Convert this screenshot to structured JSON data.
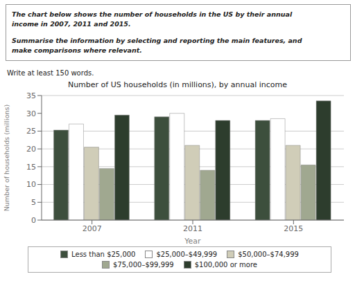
{
  "chart_data": {
    "type": "bar",
    "title": "Number of US households (in millions), by annual income",
    "xlabel": "Year",
    "ylabel": "Number of households (millions)",
    "categories": [
      "2007",
      "2011",
      "2015"
    ],
    "series": [
      {
        "name": "Less than $25,000",
        "color": "#3d4f3d",
        "values": [
          25.3,
          29.0,
          28.0
        ]
      },
      {
        "name": "$25,000–$49,999",
        "color": "#ffffff",
        "values": [
          27.0,
          30.0,
          28.5
        ]
      },
      {
        "name": "$50,000–$74,999",
        "color": "#d0cdb8",
        "values": [
          20.5,
          21.0,
          21.0
        ]
      },
      {
        "name": "$75,000–$99,999",
        "color": "#a0a890",
        "values": [
          14.5,
          14.0,
          15.5
        ]
      },
      {
        "name": "$100,000 or more",
        "color": "#2d3d2d",
        "values": [
          29.5,
          28.0,
          33.5
        ]
      }
    ],
    "ylim": [
      0,
      35
    ],
    "yticks": [
      0,
      5,
      10,
      15,
      20,
      25,
      30,
      35
    ],
    "grid": true,
    "legend": "bottom",
    "annotations": [
      "The chart below shows the number of households in the US by their annual",
      "income in 2007, 2011 and 2015.",
      "Summarise the information by selecting and reporting the main features, and",
      "make comparisons where relevant.",
      "Write at least 150 words."
    ]
  }
}
